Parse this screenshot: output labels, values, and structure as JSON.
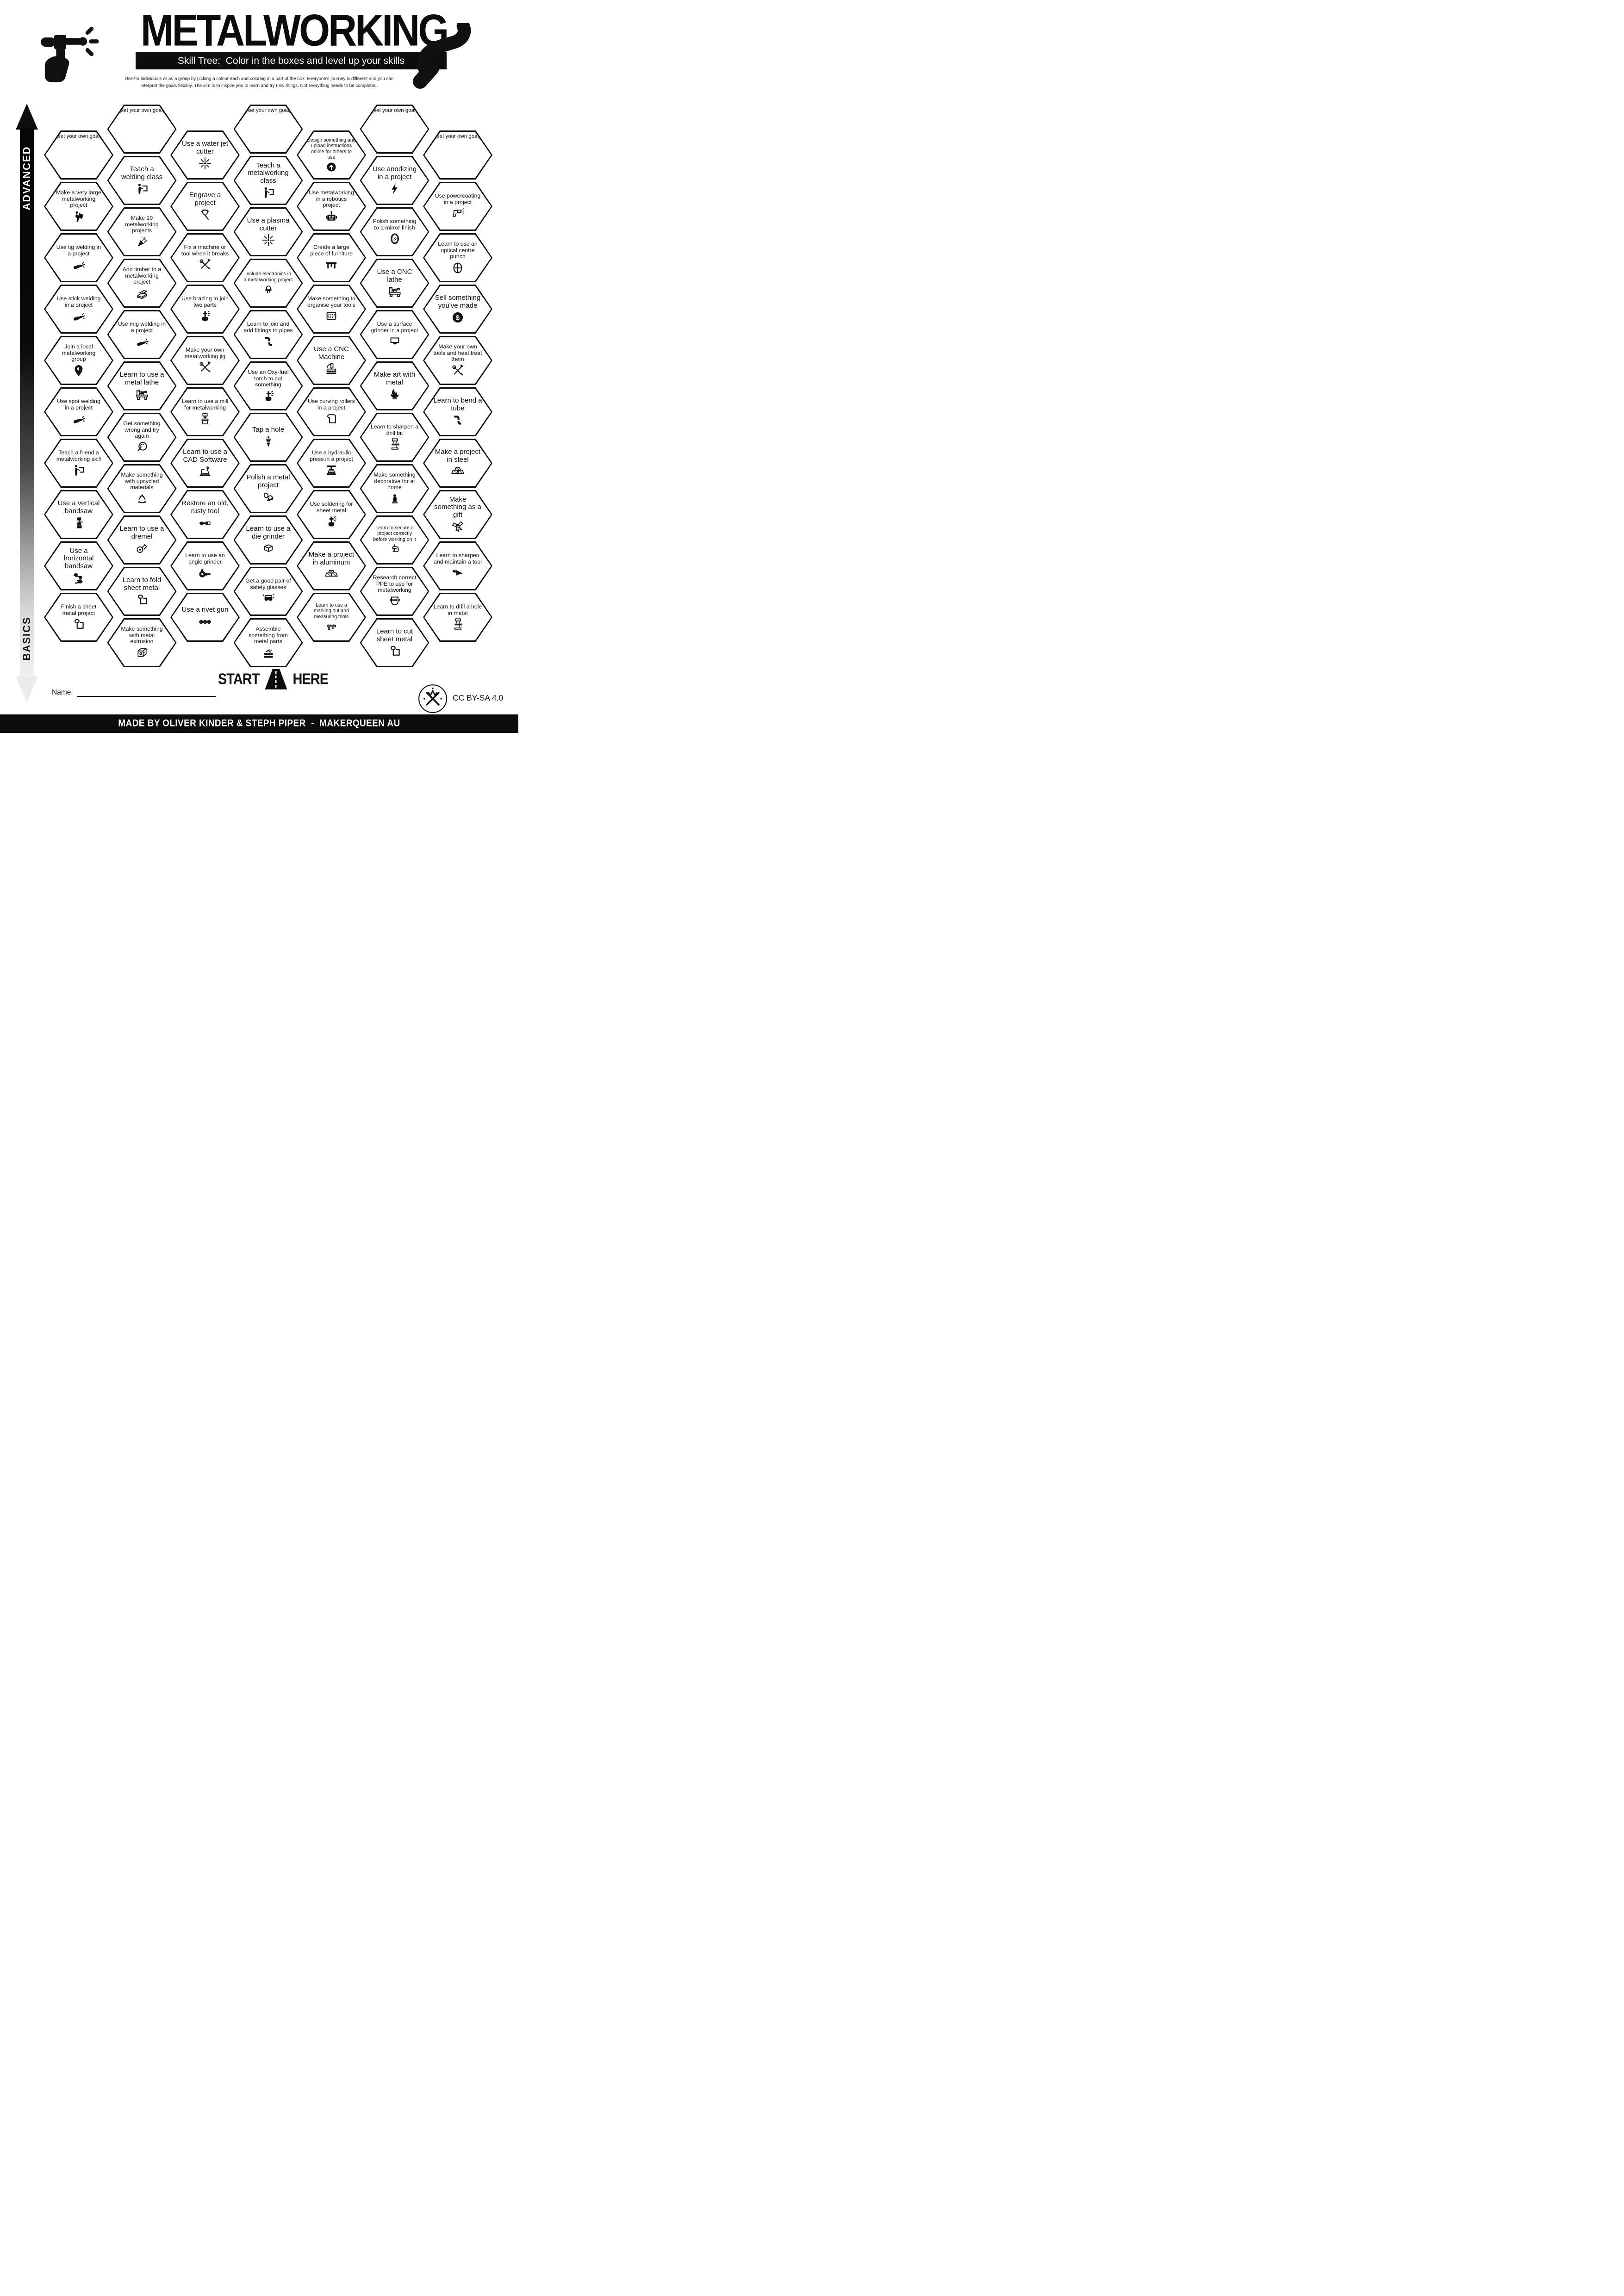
{
  "header": {
    "title": "METALWORKING",
    "subtitle": "Skill Tree:  Color in the boxes and level up your skills",
    "desc1": "Use for individuals or as a group by picking a colour each and coloring in a part of the box.  Everyone's journey is different and you can",
    "desc2": "interpret the goals flexibly.  The aim is to inspire you to learn and try new things. Not everything needs to be completed."
  },
  "axis": {
    "top_label": "ADVANCED",
    "bottom_label": "BASICS"
  },
  "start": {
    "start_label": "START",
    "here_label": "HERE"
  },
  "name_field": {
    "label": "Name:"
  },
  "license": {
    "label": "CC BY-SA 4.0"
  },
  "footer": {
    "credit": "MADE BY OLIVER KINDER & STEPH PIPER  -  MAKERQUEEN AU"
  },
  "colors": {
    "ink": "#111111",
    "paper": "#ffffff"
  },
  "columns": [
    {
      "items": [
        {
          "label": "(set your own goal)",
          "icon": "goal",
          "goal": true
        },
        {
          "label": "Make a very large metalworking project",
          "icon": "carry-project"
        },
        {
          "label": "Use tig welding in a project",
          "icon": "welding-torch"
        },
        {
          "label": "Use stick welding in a project",
          "icon": "welding-torch"
        },
        {
          "label": "Join a local metalworking group",
          "icon": "map-pin"
        },
        {
          "label": "Use spot welding in a project",
          "icon": "welding-torch"
        },
        {
          "label": "Teach a friend a metalworking skill",
          "icon": "teacher"
        },
        {
          "label": "Use a vertical bandsaw",
          "icon": "bandsaw-vertical"
        },
        {
          "label": "Use a horizontal bandsaw",
          "icon": "bandsaw-horizontal"
        },
        {
          "label": "Finish a sheet metal project",
          "icon": "sheet-metal"
        }
      ]
    },
    {
      "items": [
        {
          "label": "(set your own goal)",
          "icon": "goal",
          "goal": true
        },
        {
          "label": "Teach a welding class",
          "icon": "teacher"
        },
        {
          "label": "Make 10 metalworking projects",
          "icon": "party-popper"
        },
        {
          "label": "Add timber to a metalworking project",
          "icon": "timber"
        },
        {
          "label": "Use mig welding in a project",
          "icon": "welding-torch"
        },
        {
          "label": "Learn to use a metal lathe",
          "icon": "lathe"
        },
        {
          "label": "Get something wrong and try again",
          "icon": "facepalm"
        },
        {
          "label": "Make something with upcycled materials",
          "icon": "recycle"
        },
        {
          "label": "Learn to use a dremel",
          "icon": "rotary-tool"
        },
        {
          "label": "Learn to fold sheet metal",
          "icon": "sheet-metal"
        },
        {
          "label": "Make something with metal extrusion",
          "icon": "extrusion"
        }
      ]
    },
    {
      "items": [
        {
          "label": "Use a water jet cutter",
          "icon": "spark"
        },
        {
          "label": "Engrave a project",
          "icon": "engrave"
        },
        {
          "label": "Fix a machine or tool when it breaks",
          "icon": "crossed-tools"
        },
        {
          "label": "Use brazing to join two parts",
          "icon": "gas-torch"
        },
        {
          "label": "Make your own metalworking jig",
          "icon": "crossed-tools"
        },
        {
          "label": "Learn to use a mill for metalworking",
          "icon": "mill"
        },
        {
          "label": "Learn to use a CAD Software",
          "icon": "laptop-cad"
        },
        {
          "label": "Restore an old, rusty tool",
          "icon": "rusty-tool"
        },
        {
          "label": "Learn to use an angle grinder",
          "icon": "angle-grinder"
        },
        {
          "label": "Use a rivet gun",
          "icon": "rivets"
        }
      ]
    },
    {
      "items": [
        {
          "label": "(set your own goal)",
          "icon": "goal",
          "goal": true
        },
        {
          "label": "Teach a metalworking class",
          "icon": "teacher"
        },
        {
          "label": "Use a plasma cutter",
          "icon": "spark"
        },
        {
          "label": "Include electronics in a metalworking project",
          "icon": "led"
        },
        {
          "label": "Learn to join and add fittings to pipes",
          "icon": "pipe-fittings"
        },
        {
          "label": "Use an Oxy-fuel torch to cut something",
          "icon": "gas-torch"
        },
        {
          "label": "Tap a hole",
          "icon": "thread-tap"
        },
        {
          "label": "Polish a metal project",
          "icon": "polisher"
        },
        {
          "label": "Learn to use a die grinder",
          "icon": "die-grinder"
        },
        {
          "label": "Get a good pair of safety glasses",
          "icon": "safety-glasses"
        },
        {
          "label": "Assemble something from metal parts",
          "icon": "toolbox"
        }
      ]
    },
    {
      "items": [
        {
          "label": "Design something and upload instructions online for others to use",
          "icon": "upload"
        },
        {
          "label": "Use metalworking in a robotics project",
          "icon": "robot"
        },
        {
          "label": "Create a large piece of furniture",
          "icon": "furniture-table"
        },
        {
          "label": "Make something to organise your tools",
          "icon": "pegboard"
        },
        {
          "label": "Use a CNC Machine",
          "icon": "cnc-machine"
        },
        {
          "label": "Use curving rollers in a project",
          "icon": "curved-sheet"
        },
        {
          "label": "Use a hydraulic press in a project",
          "icon": "hydraulic-press"
        },
        {
          "label": "Use soldering for sheet metal",
          "icon": "gas-torch"
        },
        {
          "label": "Make a project in aluminum",
          "icon": "ingots"
        },
        {
          "label": "Learn to use a marking out and measuring tools",
          "icon": "caliper"
        }
      ]
    },
    {
      "items": [
        {
          "label": "(set your own goal)",
          "icon": "goal",
          "goal": true
        },
        {
          "label": "Use anodizing in a project",
          "icon": "lightning"
        },
        {
          "label": "Polish something to a mirror finish",
          "icon": "mirror"
        },
        {
          "label": "Use a CNC lathe",
          "icon": "lathe"
        },
        {
          "label": "Use a surface grinder in a project",
          "icon": "surface-grinder"
        },
        {
          "label": "Make art with metal",
          "icon": "metal-art"
        },
        {
          "label": "Learn to sharpen a drill bit",
          "icon": "drill-press"
        },
        {
          "label": "Make something decorative for at home",
          "icon": "ornament"
        },
        {
          "label": "Learn to secure a project correctly before working on it",
          "icon": "clamp"
        },
        {
          "label": "Research correct PPE to use for metalworking",
          "icon": "welding-helmet"
        },
        {
          "label": "Learn to cut sheet metal",
          "icon": "sheet-metal"
        }
      ]
    },
    {
      "items": [
        {
          "label": "(set your own goal)",
          "icon": "goal",
          "goal": true
        },
        {
          "label": "Use powercoating in a project",
          "icon": "spray-gun"
        },
        {
          "label": "Learn to use an optical centre punch",
          "icon": "centre-punch"
        },
        {
          "label": "Sell something you've made",
          "icon": "dollar"
        },
        {
          "label": "Make your own tools and heat treat them",
          "icon": "crossed-tools"
        },
        {
          "label": "Learn to bend a tube",
          "icon": "pipe-fittings"
        },
        {
          "label": "Make a project in steel",
          "icon": "ingots"
        },
        {
          "label": "Make something as a gift",
          "icon": "gift-bow"
        },
        {
          "label": "Learn to sharpen and maintain a tool",
          "icon": "handsaw"
        },
        {
          "label": "Learn to drill a hole in metal",
          "icon": "drill-press"
        }
      ]
    }
  ]
}
